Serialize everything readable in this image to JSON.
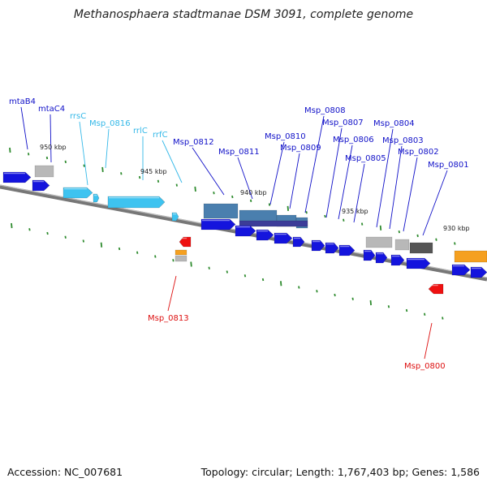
{
  "title": "Methanosphaera stadtmanae DSM 3091, complete genome",
  "accession": "Accession: NC_007681",
  "summary": "Topology: circular; Length: 1,767,403 bp; Genes: 1,586",
  "colors": {
    "label_blue": "#1010c8",
    "label_cyan": "#33b8e8",
    "label_red": "#dd1010",
    "gene_blue": "#1414dd",
    "gene_cyan": "#3ec3f0",
    "gene_red": "#ee1111",
    "gene_orange": "#f5a020",
    "gene_gray": "#b8b8b8",
    "gene_dark": "#555555",
    "gene_steel": "#4a7fae",
    "tick_green": "#2e8b2e",
    "backbone": "#777777"
  },
  "kbp_labels": [
    "950 kbp",
    "945 kbp",
    "940 kbp",
    "935 kbp",
    "930 kbp"
  ],
  "gene_labels": [
    {
      "text": "mtaB4",
      "color": "blue"
    },
    {
      "text": "mtaC4",
      "color": "blue"
    },
    {
      "text": "rrsC",
      "color": "cyan"
    },
    {
      "text": "Msp_0816",
      "color": "cyan"
    },
    {
      "text": "rrlC",
      "color": "cyan"
    },
    {
      "text": "rrfC",
      "color": "cyan"
    },
    {
      "text": "Msp_0812",
      "color": "blue"
    },
    {
      "text": "Msp_0811",
      "color": "blue"
    },
    {
      "text": "Msp_0810",
      "color": "blue"
    },
    {
      "text": "Msp_0809",
      "color": "blue"
    },
    {
      "text": "Msp_0808",
      "color": "blue"
    },
    {
      "text": "Msp_0807",
      "color": "blue"
    },
    {
      "text": "Msp_0806",
      "color": "blue"
    },
    {
      "text": "Msp_0805",
      "color": "blue"
    },
    {
      "text": "Msp_0804",
      "color": "blue"
    },
    {
      "text": "Msp_0803",
      "color": "blue"
    },
    {
      "text": "Msp_0802",
      "color": "blue"
    },
    {
      "text": "Msp_0801",
      "color": "blue"
    },
    {
      "text": "Msp_0813",
      "color": "red"
    },
    {
      "text": "Msp_0800",
      "color": "red"
    }
  ]
}
